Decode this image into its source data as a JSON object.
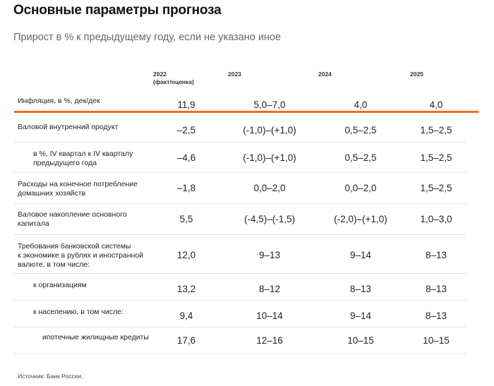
{
  "title": "Основные параметры прогноза",
  "subtitle": "Прирост в % к предыдущему году, если не указано иное",
  "columns": {
    "c2022_line1": "2022",
    "c2022_line2": "(факт/оценка)",
    "c2023": "2023",
    "c2024": "2024",
    "c2025": "2025"
  },
  "rows": [
    {
      "label": "Инфляция, в %, дек/дек",
      "v2022": "11,9",
      "v2023": "5,0–7,0",
      "v2024": "4,0",
      "v2025": "4,0"
    },
    {
      "label": "Валовой внутренний продукт",
      "v2022": "–2,5",
      "v2023": "(-1,0)–(+1,0)",
      "v2024": "0,5–2,5",
      "v2025": "1,5–2,5"
    },
    {
      "label_line1": "в %, IV квартал к IV кварталу",
      "label_line2": "предыдущего года",
      "v2022": "–4,6",
      "v2023": "(-1,0)–(+1,0)",
      "v2024": "0,5–2,5",
      "v2025": "1,5–2,5"
    },
    {
      "label_line1": "Расходы на конечное потребление",
      "label_line2": "домашних хозяйств",
      "v2022": "–1,8",
      "v2023": "0,0–2,0",
      "v2024": "0,0–2,0",
      "v2025": "1,5–2,5"
    },
    {
      "label_line1": "Валовое накопление основного",
      "label_line2": "капитала",
      "v2022": "5,5",
      "v2023": "(-4,5)–(-1,5)",
      "v2024": "(-2,0)–(+1,0)",
      "v2025": "1,0–3,0"
    },
    {
      "label_line1": "Требования банковской системы",
      "label_line2": "к экономике в рублях и иностранной",
      "label_line3": "валюте, в том числе:",
      "v2022": "12,0",
      "v2023": "9–13",
      "v2024": "9–14",
      "v2025": "8–13"
    },
    {
      "label": "к организациям",
      "v2022": "13,2",
      "v2023": "8–12",
      "v2024": "8–13",
      "v2025": "8–13"
    },
    {
      "label": "к населению, в том числе:",
      "v2022": "9,4",
      "v2023": "10–14",
      "v2024": "9–14",
      "v2025": "8–13"
    },
    {
      "label": "ипотечные жилищные кредиты",
      "v2022": "17,6",
      "v2023": "12–16",
      "v2024": "10–15",
      "v2025": "10–15"
    }
  ],
  "source": "Источник: Банк России.",
  "accent_color": "#f26b21"
}
